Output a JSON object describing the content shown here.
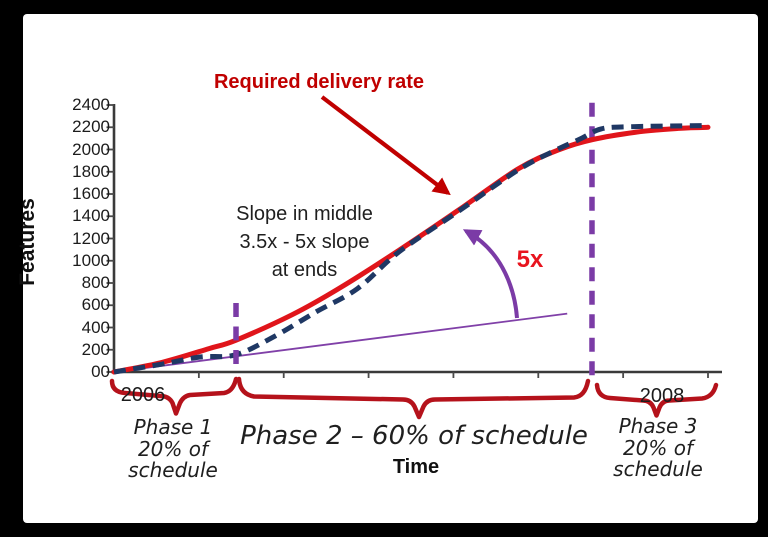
{
  "figure": {
    "background": "#000000",
    "panel_background": "#ffffff"
  },
  "chart_data": {
    "type": "line",
    "title": "",
    "xlabel": "Time",
    "ylabel": "Features",
    "grid": false,
    "legend_position": "none",
    "x_axis": {
      "tick_labels": [
        "2006",
        "2008"
      ],
      "num_intervals": 7
    },
    "y_axis": {
      "min": 0,
      "max": 2400,
      "step": 200,
      "tick_labels": [
        "2400",
        "2200",
        "2000",
        "1800",
        "1600",
        "1400",
        "1200",
        "1000",
        "800",
        "600",
        "400",
        "200",
        "00"
      ]
    },
    "series": [
      {
        "name": "Required delivery rate",
        "color": "#e0151b",
        "style": "solid",
        "x_unit": "fraction of schedule",
        "points": [
          [
            0,
            0
          ],
          [
            0.08,
            85
          ],
          [
            0.16,
            210
          ],
          [
            0.205,
            285
          ],
          [
            0.3,
            515
          ],
          [
            0.38,
            755
          ],
          [
            0.48,
            1095
          ],
          [
            0.58,
            1455
          ],
          [
            0.68,
            1825
          ],
          [
            0.75,
            2000
          ],
          [
            0.806,
            2090
          ],
          [
            0.885,
            2160
          ],
          [
            0.95,
            2190
          ],
          [
            1,
            2200
          ]
        ]
      },
      {
        "name": "",
        "color": "#1f3864",
        "style": "dashed",
        "x_unit": "fraction of schedule",
        "points": [
          [
            0,
            0
          ],
          [
            0.08,
            70
          ],
          [
            0.145,
            135
          ],
          [
            0.205,
            155
          ],
          [
            0.27,
            320
          ],
          [
            0.34,
            540
          ],
          [
            0.41,
            750
          ],
          [
            0.48,
            1080
          ],
          [
            0.58,
            1445
          ],
          [
            0.68,
            1815
          ],
          [
            0.74,
            1985
          ],
          [
            0.785,
            2095
          ],
          [
            0.82,
            2185
          ],
          [
            0.87,
            2205
          ],
          [
            1,
            2215
          ]
        ]
      }
    ],
    "reference_line": {
      "color": "#8040a8",
      "points": [
        [
          0,
          0
        ],
        [
          0.763,
          525
        ]
      ]
    },
    "phase_boundaries": [
      {
        "t": 0.2054,
        "v_top": 620,
        "over_curves": true,
        "extends_below_axis": false
      },
      {
        "t": 0.8047,
        "v_top": 2420,
        "over_curves": false,
        "extends_below_axis": true
      }
    ]
  },
  "annotations": {
    "curve_label": "Required delivery rate",
    "slope_note": [
      "Slope in middle",
      "3.5x - 5x slope",
      "at ends"
    ],
    "slope_multiplier": "5x"
  },
  "phases": {
    "phase1": [
      "Phase 1",
      "20% of",
      "schedule"
    ],
    "phase2": "Phase 2 – 60% of schedule",
    "phase3": [
      "Phase 3",
      "20% of",
      "schedule"
    ]
  },
  "colors": {
    "curve_red": "#e0151b",
    "annotation_red": "#c00000",
    "navy": "#1f3864",
    "purple": "#7b3ba6",
    "brace_red": "#b5121b",
    "axis": "#3a3a3a",
    "text": "#1c1c1c"
  }
}
